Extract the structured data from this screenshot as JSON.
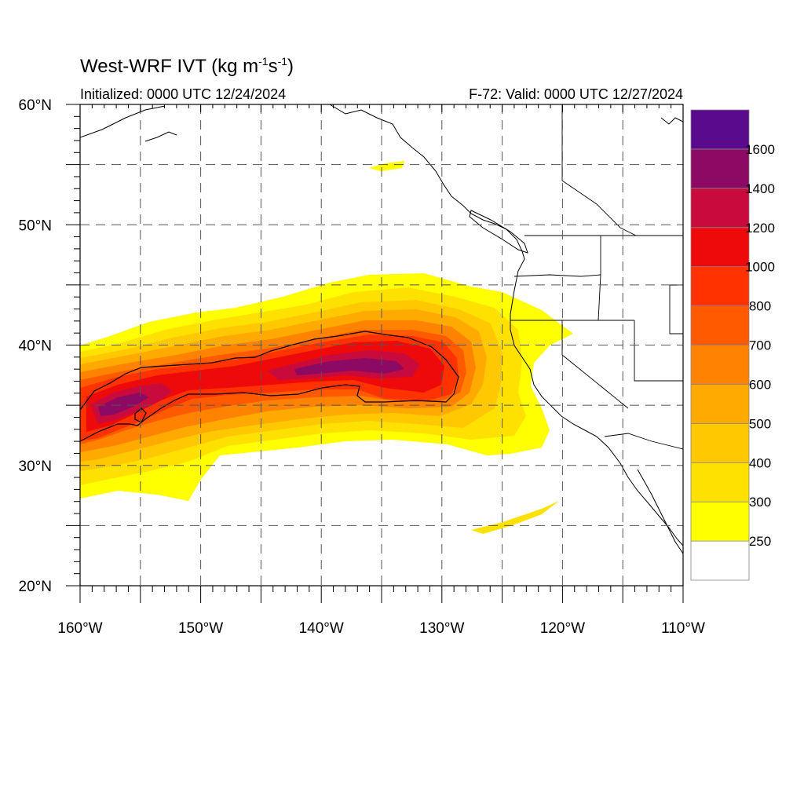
{
  "title": {
    "prefix": "West-WRF IVT (kg m",
    "exp1": "-1",
    "mid": "s",
    "exp2": "-1",
    "suffix": ")"
  },
  "initialized": "Initialized: 0000 UTC 12/24/2024",
  "valid": "F-72: Valid: 0000 UTC 12/27/2024",
  "map": {
    "lon_range": [
      -160,
      -110
    ],
    "lat_range": [
      20,
      60
    ],
    "grid_lons": [
      -155,
      -150,
      -145,
      -140,
      -135,
      -130,
      -125,
      -120,
      -115
    ],
    "grid_lats": [
      25,
      30,
      35,
      40,
      45,
      50,
      55
    ],
    "x_ticks": [
      {
        "lon": -160,
        "label": "160°W"
      },
      {
        "lon": -150,
        "label": "150°W"
      },
      {
        "lon": -140,
        "label": "140°W"
      },
      {
        "lon": -130,
        "label": "130°W"
      },
      {
        "lon": -120,
        "label": "120°W"
      },
      {
        "lon": -110,
        "label": "110°W"
      }
    ],
    "y_ticks": [
      {
        "lat": 60,
        "label": "60°N"
      },
      {
        "lat": 50,
        "label": "50°N"
      },
      {
        "lat": 40,
        "label": "40°N"
      },
      {
        "lat": 30,
        "label": "30°N"
      },
      {
        "lat": 20,
        "label": "20°N"
      }
    ],
    "colors": {
      "250": "#ffff00",
      "300": "#ffe100",
      "400": "#ffc800",
      "500": "#ffaa00",
      "600": "#ff8200",
      "700": "#ff5a00",
      "800": "#ff3200",
      "1000": "#ee0a0a",
      "1200": "#c80a3c",
      "1400": "#8c0a64",
      "1600": "#5a0a8c"
    },
    "colorbar": {
      "labels": [
        "250",
        "300",
        "400",
        "500",
        "600",
        "700",
        "800",
        "1000",
        "1200",
        "1400",
        "1600"
      ],
      "bins": [
        "#ffffff",
        "#ffff00",
        "#ffe100",
        "#ffc800",
        "#ffaa00",
        "#ff8200",
        "#ff5a00",
        "#ff3200",
        "#ee0a0a",
        "#c80a3c",
        "#8c0a64",
        "#5a0a8c"
      ]
    }
  }
}
